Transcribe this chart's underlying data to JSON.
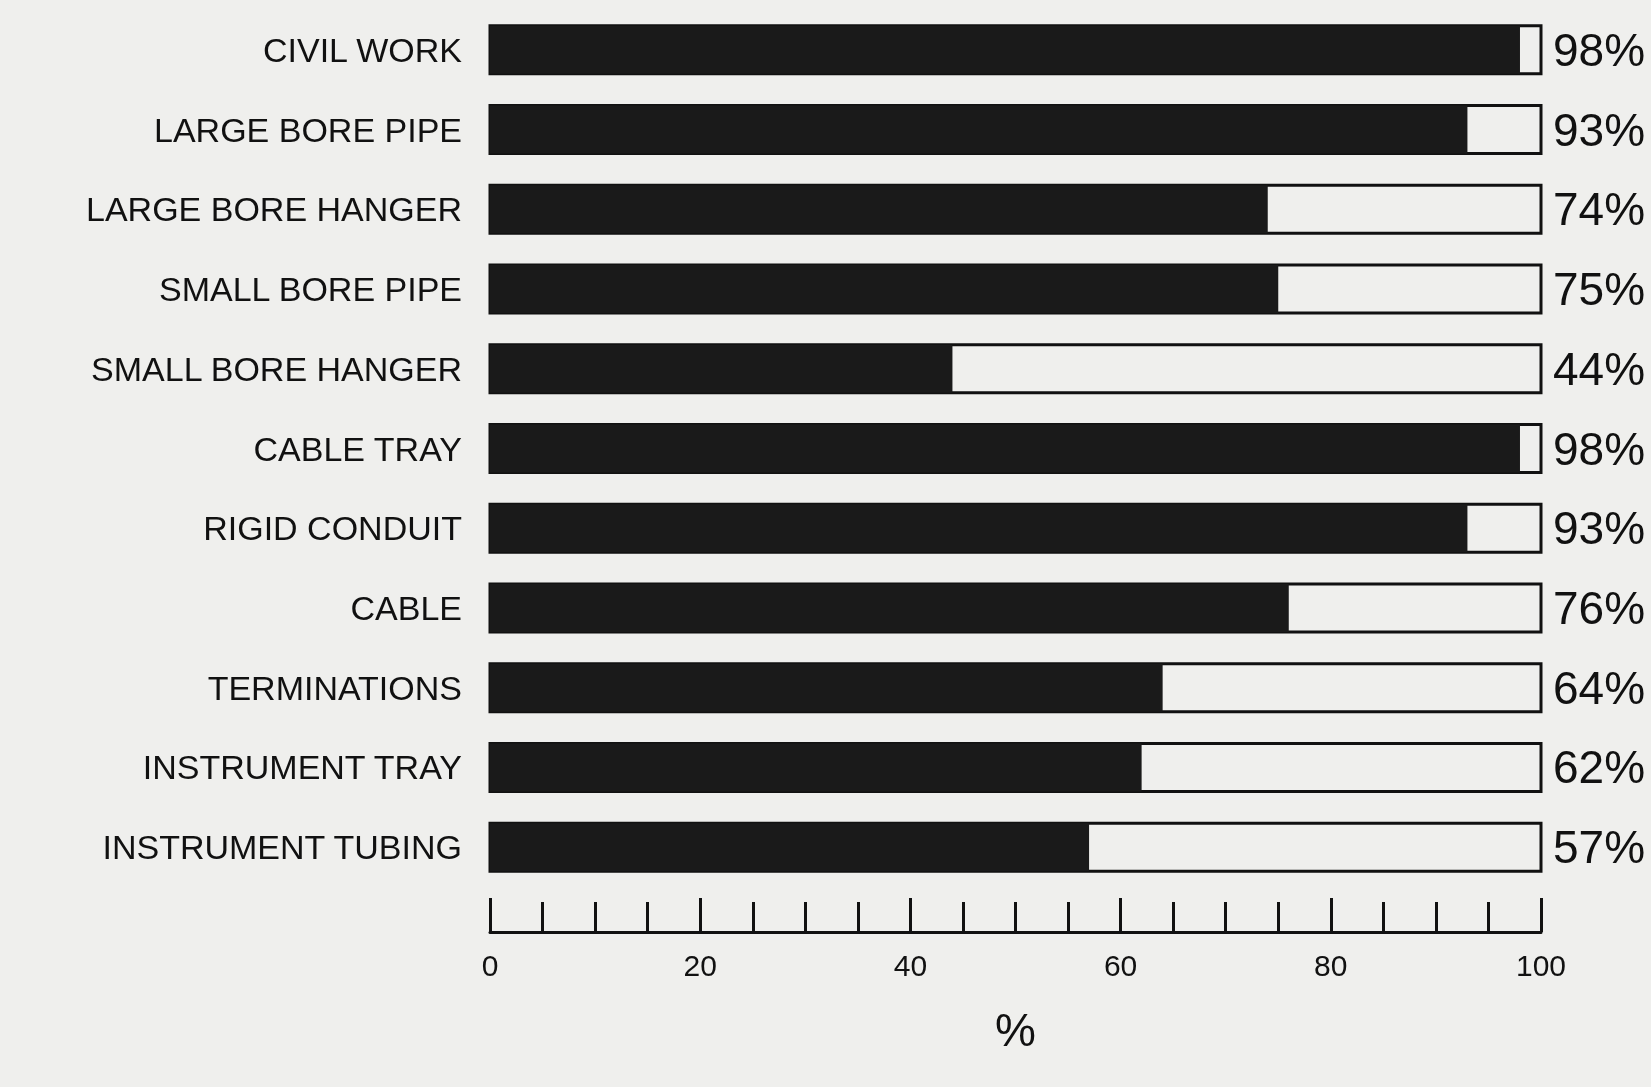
{
  "chart_data": {
    "type": "bar",
    "orientation": "horizontal",
    "xlabel": "%",
    "categories": [
      "CIVIL WORK",
      "LARGE BORE PIPE",
      "LARGE BORE HANGER",
      "SMALL BORE PIPE",
      "SMALL BORE HANGER",
      "CABLE TRAY",
      "RIGID CONDUIT",
      "CABLE",
      "TERMINATIONS",
      "INSTRUMENT TRAY",
      "INSTRUMENT TUBING"
    ],
    "values": [
      98,
      93,
      74,
      75,
      44,
      98,
      93,
      76,
      64,
      62,
      57
    ],
    "value_labels": [
      "98%",
      "93%",
      "74%",
      "75%",
      "44%",
      "98%",
      "93%",
      "76%",
      "64%",
      "62%",
      "57%"
    ],
    "color": "#1a1a1a",
    "xlim": [
      0,
      100
    ],
    "xticks": [
      0,
      20,
      40,
      60,
      80,
      100
    ],
    "grid": false
  }
}
